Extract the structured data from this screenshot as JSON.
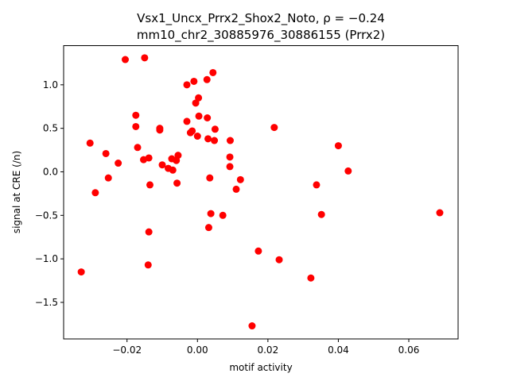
{
  "chart_data": {
    "type": "scatter",
    "title_line1": "Vsx1_Uncx_Prrx2_Shox2_Noto, ρ = −0.24",
    "title_line2": "mm10_chr2_30885976_30886155 (Prrx2)",
    "xlabel": "motif activity",
    "ylabel": "signal at CRE (/n)",
    "xlim": [
      -0.038,
      0.074
    ],
    "ylim": [
      -1.92,
      1.45
    ],
    "xticks": [
      {
        "value": -0.02,
        "label": "−0.02"
      },
      {
        "value": 0.0,
        "label": "0.00"
      },
      {
        "value": 0.02,
        "label": "0.02"
      },
      {
        "value": 0.04,
        "label": "0.04"
      },
      {
        "value": 0.06,
        "label": "0.06"
      }
    ],
    "yticks": [
      {
        "value": -1.5,
        "label": "−1.5"
      },
      {
        "value": -1.0,
        "label": "−1.0"
      },
      {
        "value": -0.5,
        "label": "−0.5"
      },
      {
        "value": 0.0,
        "label": "0.0"
      },
      {
        "value": 0.5,
        "label": "0.5"
      },
      {
        "value": 1.0,
        "label": "1.0"
      }
    ],
    "grid": false,
    "point_color": "#ff0000",
    "points": [
      {
        "x": -0.0205,
        "y": 1.29
      },
      {
        "x": -0.015,
        "y": 1.31
      },
      {
        "x": 0.0044,
        "y": 1.14
      },
      {
        "x": 0.0027,
        "y": 1.06
      },
      {
        "x": -0.001,
        "y": 1.04
      },
      {
        "x": -0.003,
        "y": 1.0
      },
      {
        "x": 0.0003,
        "y": 0.85
      },
      {
        "x": -0.0005,
        "y": 0.79
      },
      {
        "x": -0.0175,
        "y": 0.65
      },
      {
        "x": 0.0004,
        "y": 0.64
      },
      {
        "x": 0.0028,
        "y": 0.62
      },
      {
        "x": -0.003,
        "y": 0.58
      },
      {
        "x": -0.0175,
        "y": 0.52
      },
      {
        "x": -0.0107,
        "y": 0.5
      },
      {
        "x": -0.0107,
        "y": 0.48
      },
      {
        "x": 0.005,
        "y": 0.49
      },
      {
        "x": 0.0218,
        "y": 0.51
      },
      {
        "x": -0.0015,
        "y": 0.47
      },
      {
        "x": -0.002,
        "y": 0.45
      },
      {
        "x": 0.0,
        "y": 0.41
      },
      {
        "x": 0.003,
        "y": 0.38
      },
      {
        "x": 0.0048,
        "y": 0.36
      },
      {
        "x": 0.0093,
        "y": 0.36
      },
      {
        "x": -0.0305,
        "y": 0.33
      },
      {
        "x": 0.04,
        "y": 0.3
      },
      {
        "x": -0.017,
        "y": 0.28
      },
      {
        "x": -0.026,
        "y": 0.21
      },
      {
        "x": -0.0055,
        "y": 0.19
      },
      {
        "x": 0.0092,
        "y": 0.17
      },
      {
        "x": -0.0138,
        "y": 0.16
      },
      {
        "x": -0.0153,
        "y": 0.14
      },
      {
        "x": -0.0073,
        "y": 0.15
      },
      {
        "x": -0.006,
        "y": 0.13
      },
      {
        "x": -0.0225,
        "y": 0.1
      },
      {
        "x": -0.01,
        "y": 0.08
      },
      {
        "x": 0.0092,
        "y": 0.06
      },
      {
        "x": -0.0083,
        "y": 0.04
      },
      {
        "x": -0.007,
        "y": 0.02
      },
      {
        "x": 0.0428,
        "y": 0.01
      },
      {
        "x": -0.0253,
        "y": -0.07
      },
      {
        "x": 0.0035,
        "y": -0.07
      },
      {
        "x": 0.0122,
        "y": -0.09
      },
      {
        "x": -0.0058,
        "y": -0.13
      },
      {
        "x": -0.0135,
        "y": -0.15
      },
      {
        "x": 0.0338,
        "y": -0.15
      },
      {
        "x": 0.011,
        "y": -0.2
      },
      {
        "x": -0.029,
        "y": -0.24
      },
      {
        "x": 0.0688,
        "y": -0.47
      },
      {
        "x": 0.0038,
        "y": -0.48
      },
      {
        "x": 0.0352,
        "y": -0.49
      },
      {
        "x": 0.0072,
        "y": -0.5
      },
      {
        "x": 0.0032,
        "y": -0.64
      },
      {
        "x": -0.0138,
        "y": -0.69
      },
      {
        "x": 0.0173,
        "y": -0.91
      },
      {
        "x": 0.0232,
        "y": -1.01
      },
      {
        "x": -0.014,
        "y": -1.07
      },
      {
        "x": -0.033,
        "y": -1.15
      },
      {
        "x": 0.0322,
        "y": -1.22
      },
      {
        "x": 0.0155,
        "y": -1.77
      }
    ]
  }
}
